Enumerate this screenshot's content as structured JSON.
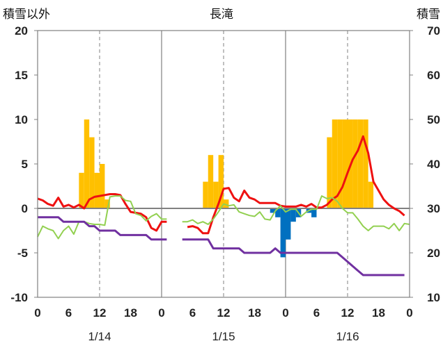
{
  "chart_data": {
    "type": "bar+line",
    "title": "長滝",
    "ylabel_left": "積雪以外",
    "ylabel_right": "積雪",
    "y_left_lim": [
      -10,
      20
    ],
    "y_left_ticks": [
      20,
      15,
      10,
      5,
      0,
      -5,
      -10
    ],
    "y_right_lim": [
      10,
      70
    ],
    "y_right_ticks": [
      70,
      60,
      50,
      40,
      30,
      20,
      10
    ],
    "x_hours_range": [
      0,
      72
    ],
    "x_tick_labels": [
      "0",
      "6",
      "12",
      "18",
      "0",
      "6",
      "12",
      "18",
      "0",
      "6",
      "12",
      "18",
      "0"
    ],
    "date_labels": [
      {
        "text": "1/14",
        "hour": 12
      },
      {
        "text": "1/15",
        "hour": 36
      },
      {
        "text": "1/16",
        "hour": 60
      }
    ],
    "bars": [
      {
        "hour": 8.5,
        "value": 4
      },
      {
        "hour": 9.5,
        "value": 10
      },
      {
        "hour": 10.5,
        "value": 8
      },
      {
        "hour": 11.5,
        "value": 4
      },
      {
        "hour": 12.5,
        "value": 5
      },
      {
        "hour": 13.5,
        "value": 1
      },
      {
        "hour": 32.5,
        "value": 3
      },
      {
        "hour": 33.5,
        "value": 6
      },
      {
        "hour": 34.5,
        "value": 3
      },
      {
        "hour": 35.5,
        "value": 6
      },
      {
        "hour": 36.5,
        "value": 1
      },
      {
        "hour": 45.5,
        "value": -0.5
      },
      {
        "hour": 46.5,
        "value": -1
      },
      {
        "hour": 47.5,
        "value": -5.5
      },
      {
        "hour": 48.5,
        "value": -3.5
      },
      {
        "hour": 49.5,
        "value": -1.5
      },
      {
        "hour": 50.5,
        "value": -1
      },
      {
        "hour": 52.5,
        "value": -0.5
      },
      {
        "hour": 53.5,
        "value": -1
      },
      {
        "hour": 56.5,
        "value": 8
      },
      {
        "hour": 57.5,
        "value": 10
      },
      {
        "hour": 58.5,
        "value": 10
      },
      {
        "hour": 59.5,
        "value": 10
      },
      {
        "hour": 60.5,
        "value": 10
      },
      {
        "hour": 61.5,
        "value": 10
      },
      {
        "hour": 62.5,
        "value": 10
      },
      {
        "hour": 63.5,
        "value": 10
      },
      {
        "hour": 64.5,
        "value": 3
      }
    ],
    "series": [
      {
        "color": "#ee1111",
        "points": [
          [
            0,
            1.1
          ],
          [
            1,
            0.9
          ],
          [
            2,
            0.5
          ],
          [
            3,
            0.3
          ],
          [
            4,
            1.2
          ],
          [
            5,
            0.2
          ],
          [
            6,
            0.4
          ],
          [
            7,
            0.1
          ],
          [
            8,
            0.4
          ],
          [
            9,
            0
          ],
          [
            10,
            1
          ],
          [
            11,
            1.3
          ],
          [
            12,
            1.4
          ],
          [
            13,
            1.5
          ],
          [
            14,
            1.6
          ],
          [
            15,
            1.6
          ],
          [
            16,
            1.5
          ],
          [
            17,
            0.5
          ],
          [
            18,
            -0.4
          ],
          [
            19,
            -0.5
          ],
          [
            20,
            -0.6
          ],
          [
            21,
            -1.0
          ],
          [
            22,
            -2.2
          ],
          [
            23,
            -2.5
          ],
          [
            24,
            -1.5
          ],
          [
            25,
            -1.5
          ],
          null,
          [
            29,
            -2.1
          ],
          [
            30,
            -2.0
          ],
          [
            31,
            -2.2
          ],
          [
            32,
            -2.8
          ],
          [
            33,
            -2.8
          ],
          [
            34,
            -1.0
          ],
          [
            35,
            0.5
          ],
          [
            36,
            2.2
          ],
          [
            37,
            2.3
          ],
          [
            38,
            1.2
          ],
          [
            39,
            0.8
          ],
          [
            40,
            2.0
          ],
          [
            41,
            1.2
          ],
          [
            42,
            1.0
          ],
          [
            43,
            0.6
          ],
          [
            44,
            0.6
          ],
          [
            45,
            0.6
          ],
          [
            46,
            0.6
          ],
          [
            47,
            0.3
          ],
          [
            48,
            0.2
          ],
          [
            49,
            0.2
          ],
          [
            50,
            0.2
          ],
          [
            51,
            0.4
          ],
          [
            52,
            0.2
          ],
          [
            53,
            0.5
          ],
          [
            54,
            0.1
          ],
          [
            55,
            0.1
          ],
          [
            56,
            0.4
          ],
          [
            57,
            1.0
          ],
          [
            58,
            1.4
          ],
          [
            59,
            2.4
          ],
          [
            60,
            4.0
          ],
          [
            61,
            5.5
          ],
          [
            62,
            6.5
          ],
          [
            63,
            8.1
          ],
          [
            64,
            6.2
          ],
          [
            65,
            3.0
          ],
          [
            66,
            2.0
          ],
          [
            67,
            1.0
          ],
          [
            68,
            0.4
          ],
          [
            69,
            0
          ],
          [
            70,
            -0.3
          ],
          [
            71,
            -0.8
          ]
        ]
      },
      {
        "color": "#92d050",
        "points": [
          [
            0,
            -3.2
          ],
          [
            1,
            -2.0
          ],
          [
            2,
            -2.3
          ],
          [
            3,
            -2.5
          ],
          [
            4,
            -3.4
          ],
          [
            5,
            -2.5
          ],
          [
            6,
            -2.0
          ],
          [
            7,
            -2.9
          ],
          [
            8,
            -1.5
          ],
          [
            9,
            -1.5
          ],
          [
            10,
            -1.7
          ],
          [
            11,
            -1.8
          ],
          [
            12,
            -1.8
          ],
          [
            13,
            -1.9
          ],
          [
            14,
            1.3
          ],
          [
            15,
            1.4
          ],
          [
            16,
            1.4
          ],
          [
            17,
            0.9
          ],
          [
            18,
            0.8
          ],
          [
            19,
            -0.6
          ],
          [
            20,
            -0.8
          ],
          [
            21,
            -1.4
          ],
          [
            22,
            -0.9
          ],
          [
            23,
            -0.6
          ],
          [
            24,
            -1.2
          ],
          [
            25,
            -1.2
          ],
          null,
          [
            28,
            -1.5
          ],
          [
            29,
            -1.5
          ],
          [
            30,
            -1.3
          ],
          [
            31,
            -1.7
          ],
          [
            32,
            -1.5
          ],
          [
            33,
            -1.8
          ],
          [
            34,
            -1.2
          ],
          [
            35,
            -0.4
          ],
          [
            36,
            0.5
          ],
          [
            37,
            0.3
          ],
          [
            38,
            0.4
          ],
          [
            39,
            -0.4
          ],
          [
            40,
            -0.6
          ],
          [
            41,
            -0.8
          ],
          [
            42,
            -0.9
          ],
          [
            43,
            -0.4
          ],
          [
            44,
            -1.2
          ],
          [
            45,
            -1.3
          ],
          [
            46,
            -0.3
          ],
          [
            47,
            0.3
          ],
          [
            48,
            -0.4
          ],
          [
            49,
            -0.1
          ],
          [
            50,
            -0.1
          ],
          [
            51,
            -0.9
          ],
          [
            52,
            -0.4
          ],
          [
            53,
            -0.1
          ],
          [
            54,
            -0.1
          ],
          [
            55,
            1.4
          ],
          [
            56,
            1.1
          ],
          [
            57,
            1.2
          ],
          [
            58,
            0.8
          ],
          [
            59,
            0
          ],
          [
            60,
            -0.5
          ],
          [
            61,
            -0.5
          ],
          [
            62,
            -1.2
          ],
          [
            63,
            -2.0
          ],
          [
            64,
            -2.5
          ],
          [
            65,
            -2.0
          ],
          [
            66,
            -2.0
          ],
          [
            67,
            -2.0
          ],
          [
            68,
            -2.3
          ],
          [
            69,
            -1.7
          ],
          [
            70,
            -2.5
          ],
          [
            71,
            -1.7
          ],
          [
            72,
            -1.8
          ]
        ]
      },
      {
        "color": "#7030a0",
        "axis": "right",
        "points": [
          [
            0,
            28
          ],
          [
            1,
            28
          ],
          [
            2,
            28
          ],
          [
            3,
            28
          ],
          [
            4,
            28
          ],
          [
            5,
            27
          ],
          [
            6,
            27
          ],
          [
            7,
            27
          ],
          [
            8,
            27
          ],
          [
            9,
            27
          ],
          [
            10,
            26
          ],
          [
            11,
            26
          ],
          [
            12,
            25
          ],
          [
            13,
            25
          ],
          [
            14,
            25
          ],
          [
            15,
            25
          ],
          [
            16,
            24
          ],
          [
            17,
            24
          ],
          [
            18,
            24
          ],
          [
            19,
            24
          ],
          [
            20,
            24
          ],
          [
            21,
            24
          ],
          [
            22,
            23
          ],
          [
            23,
            23
          ],
          [
            24,
            23
          ],
          [
            25,
            23
          ],
          null,
          [
            28,
            23
          ],
          [
            29,
            23
          ],
          [
            30,
            23
          ],
          [
            31,
            23
          ],
          [
            32,
            23
          ],
          [
            33,
            23
          ],
          [
            34,
            21
          ],
          [
            35,
            21
          ],
          [
            36,
            21
          ],
          [
            37,
            21
          ],
          [
            38,
            21
          ],
          [
            39,
            21
          ],
          [
            40,
            20
          ],
          [
            41,
            20
          ],
          [
            42,
            20
          ],
          [
            43,
            20
          ],
          [
            44,
            20
          ],
          [
            45,
            20
          ],
          [
            46,
            21
          ],
          [
            47,
            20
          ],
          [
            48,
            20
          ],
          [
            49,
            20
          ],
          [
            50,
            20
          ],
          [
            51,
            20
          ],
          [
            52,
            20
          ],
          [
            53,
            20
          ],
          [
            54,
            20
          ],
          [
            55,
            20
          ],
          [
            56,
            20
          ],
          [
            57,
            20
          ],
          [
            58,
            20
          ],
          [
            59,
            19
          ],
          [
            60,
            18
          ],
          [
            61,
            17
          ],
          [
            62,
            16
          ],
          [
            63,
            15
          ],
          [
            64,
            15
          ],
          [
            65,
            15
          ],
          [
            66,
            15
          ],
          [
            67,
            15
          ],
          [
            68,
            15
          ],
          [
            69,
            15
          ],
          [
            70,
            15
          ],
          [
            71,
            15
          ]
        ]
      }
    ]
  }
}
